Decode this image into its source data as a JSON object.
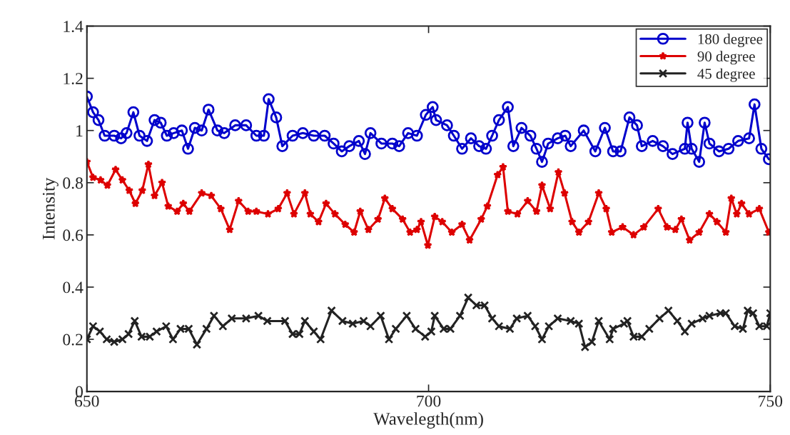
{
  "chart_data": {
    "type": "line",
    "xlabel": "Wavelegth(nm)",
    "ylabel": "Intensity",
    "xlim": [
      650,
      750
    ],
    "xticks": [
      650,
      700,
      750
    ],
    "ylim": [
      0,
      1.4
    ],
    "yticks": [
      0,
      0.2,
      0.4,
      0.6,
      0.8,
      1,
      1.2,
      1.4
    ],
    "grid": false,
    "legend": "top right",
    "line_style": "solid",
    "series": [
      {
        "name": "180 degree",
        "color": "#0000cc",
        "marker": "circle",
        "x": [
          650,
          650.9,
          651.7,
          652.6,
          654,
          655,
          655.8,
          656.8,
          657.7,
          658.8,
          659.9,
          660.8,
          661.7,
          662.7,
          663.9,
          664.8,
          665.8,
          666.8,
          667.8,
          669.1,
          670.1,
          671.7,
          673.3,
          674.8,
          675.9,
          676.6,
          677.7,
          678.6,
          680.1,
          681.6,
          683.2,
          684.8,
          686.1,
          687.3,
          688.4,
          689.8,
          690.7,
          691.5,
          693.1,
          694.7,
          695.7,
          697,
          698.3,
          699.6,
          700.6,
          701.1,
          702.7,
          703.7,
          704.9,
          706.2,
          707.4,
          708.4,
          709.3,
          710.3,
          711.6,
          712.4,
          713.6,
          714.9,
          715.8,
          716.6,
          717.5,
          718.9,
          720,
          720.8,
          722.7,
          724.4,
          725.8,
          727,
          728.1,
          729.4,
          730.5,
          731.2,
          732.8,
          734.3,
          735.7,
          737.5,
          737.9,
          738.5,
          739.6,
          740.4,
          741.1,
          742.5,
          743.9,
          745.3,
          746.9,
          747.7,
          748.7,
          749.8
        ],
        "values": [
          1.13,
          1.07,
          1.04,
          0.98,
          0.98,
          0.97,
          0.99,
          1.07,
          0.98,
          0.96,
          1.04,
          1.03,
          0.98,
          0.99,
          1.0,
          0.93,
          1.01,
          1.0,
          1.08,
          1.0,
          0.99,
          1.02,
          1.02,
          0.98,
          0.98,
          1.12,
          1.05,
          0.94,
          0.98,
          0.99,
          0.98,
          0.98,
          0.95,
          0.92,
          0.94,
          0.96,
          0.91,
          0.99,
          0.95,
          0.95,
          0.94,
          0.99,
          0.98,
          1.06,
          1.09,
          1.04,
          1.02,
          0.98,
          0.93,
          0.97,
          0.94,
          0.93,
          0.98,
          1.04,
          1.09,
          0.94,
          1.01,
          0.98,
          0.93,
          0.88,
          0.95,
          0.97,
          0.98,
          0.94,
          1.0,
          0.92,
          1.01,
          0.92,
          0.92,
          1.05,
          1.02,
          0.94,
          0.96,
          0.94,
          0.91,
          0.93,
          1.03,
          0.93,
          0.88,
          1.03,
          0.95,
          0.92,
          0.93,
          0.96,
          0.97,
          1.1,
          0.93,
          0.89
        ]
      },
      {
        "name": "90 degree",
        "color": "#dd0000",
        "marker": "star",
        "x": [
          650,
          650.9,
          652,
          653,
          654.2,
          655.2,
          656.2,
          657.1,
          658.1,
          659,
          659.9,
          661,
          661.9,
          663.2,
          664.1,
          665,
          666.8,
          668.2,
          669.6,
          670.9,
          672.2,
          673.6,
          674.8,
          676.5,
          678,
          679.3,
          680.3,
          681.9,
          682.7,
          683.9,
          685,
          686.3,
          687.8,
          689.1,
          690,
          691.2,
          692.6,
          693.6,
          694.7,
          696.2,
          697.3,
          698.3,
          698.9,
          699.9,
          700.9,
          702,
          703.4,
          704.9,
          706,
          707.7,
          708.6,
          710.1,
          710.9,
          711.6,
          713,
          714.5,
          715.8,
          716.6,
          717.8,
          719,
          719.9,
          721,
          722,
          723.4,
          724.9,
          726,
          726.8,
          728.4,
          730,
          731.5,
          733.6,
          734.9,
          736.1,
          737,
          738.2,
          739.6,
          741.1,
          742.2,
          743.5,
          744.3,
          745.1,
          745.8,
          746.9,
          748.4,
          749.8
        ],
        "values": [
          0.88,
          0.82,
          0.81,
          0.79,
          0.85,
          0.81,
          0.77,
          0.72,
          0.77,
          0.87,
          0.75,
          0.8,
          0.71,
          0.69,
          0.72,
          0.69,
          0.76,
          0.75,
          0.7,
          0.62,
          0.73,
          0.69,
          0.69,
          0.68,
          0.7,
          0.76,
          0.68,
          0.76,
          0.68,
          0.65,
          0.72,
          0.68,
          0.64,
          0.61,
          0.69,
          0.62,
          0.66,
          0.74,
          0.7,
          0.66,
          0.61,
          0.62,
          0.65,
          0.56,
          0.67,
          0.65,
          0.61,
          0.64,
          0.58,
          0.66,
          0.71,
          0.83,
          0.86,
          0.69,
          0.68,
          0.73,
          0.69,
          0.79,
          0.7,
          0.84,
          0.76,
          0.65,
          0.61,
          0.65,
          0.76,
          0.7,
          0.61,
          0.63,
          0.6,
          0.63,
          0.7,
          0.63,
          0.62,
          0.66,
          0.58,
          0.61,
          0.68,
          0.65,
          0.61,
          0.74,
          0.68,
          0.72,
          0.68,
          0.7,
          0.61
        ]
      },
      {
        "name": "45 degree",
        "color": "#222222",
        "marker": "cross",
        "x": [
          650,
          650.9,
          651.9,
          652.9,
          654,
          655.2,
          656.1,
          657,
          658,
          659.2,
          660.2,
          661.6,
          662.6,
          663.7,
          664.9,
          666.1,
          667.5,
          668.6,
          669.9,
          671.2,
          673.3,
          675.1,
          676.4,
          679,
          680.1,
          681.1,
          681.9,
          683.2,
          684.2,
          685.8,
          687.4,
          688.9,
          690.5,
          691.5,
          693,
          694.2,
          695.2,
          696.8,
          698.1,
          699.5,
          700.4,
          700.9,
          702.2,
          703.2,
          704.6,
          705.8,
          707,
          708.2,
          709.3,
          710.3,
          711.9,
          712.9,
          714.5,
          715.6,
          716.6,
          717.6,
          718.9,
          720.8,
          722,
          722.9,
          723.9,
          724.9,
          726.5,
          727,
          728.6,
          729.1,
          730,
          731.2,
          732.3,
          733.8,
          735.1,
          736.4,
          737.5,
          738.5,
          740.1,
          741.1,
          742.7,
          743.5,
          744.8,
          746,
          746.7,
          747.5,
          748.4,
          749.5,
          750
        ],
        "values": [
          0.2,
          0.25,
          0.23,
          0.2,
          0.19,
          0.2,
          0.22,
          0.27,
          0.21,
          0.21,
          0.23,
          0.25,
          0.2,
          0.24,
          0.24,
          0.18,
          0.24,
          0.29,
          0.25,
          0.28,
          0.28,
          0.29,
          0.27,
          0.27,
          0.22,
          0.22,
          0.27,
          0.23,
          0.2,
          0.31,
          0.27,
          0.26,
          0.27,
          0.25,
          0.29,
          0.2,
          0.24,
          0.29,
          0.24,
          0.21,
          0.23,
          0.29,
          0.24,
          0.24,
          0.29,
          0.36,
          0.33,
          0.33,
          0.28,
          0.25,
          0.24,
          0.28,
          0.29,
          0.25,
          0.2,
          0.25,
          0.28,
          0.27,
          0.26,
          0.17,
          0.19,
          0.27,
          0.2,
          0.24,
          0.26,
          0.27,
          0.21,
          0.21,
          0.24,
          0.28,
          0.31,
          0.27,
          0.23,
          0.26,
          0.28,
          0.29,
          0.3,
          0.3,
          0.25,
          0.24,
          0.31,
          0.3,
          0.25,
          0.25,
          0.3
        ]
      }
    ]
  }
}
